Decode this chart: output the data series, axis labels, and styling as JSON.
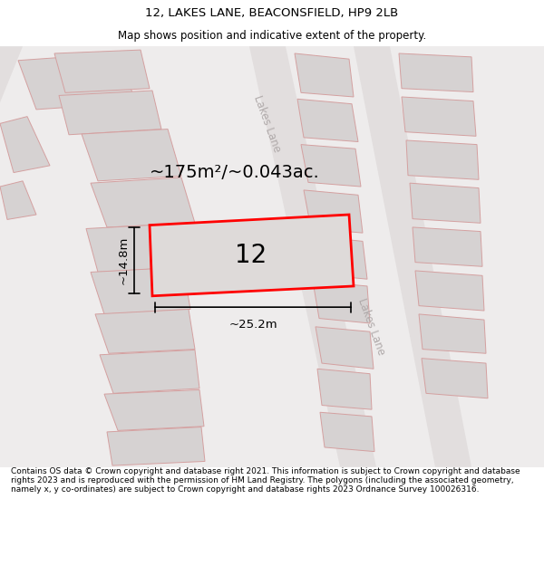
{
  "title": "12, LAKES LANE, BEACONSFIELD, HP9 2LB",
  "subtitle": "Map shows position and indicative extent of the property.",
  "area_text": "~175m²/~0.043ac.",
  "property_number": "12",
  "dim_width": "~25.2m",
  "dim_height": "~14.8m",
  "road_label": "Lakes Lane",
  "footer": "Contains OS data © Crown copyright and database right 2021. This information is subject to Crown copyright and database rights 2023 and is reproduced with the permission of HM Land Registry. The polygons (including the associated geometry, namely x, y co-ordinates) are subject to Crown copyright and database rights 2023 Ordnance Survey 100026316.",
  "title_fontsize": 9.5,
  "subtitle_fontsize": 8.5,
  "footer_fontsize": 6.5,
  "map_bg": "#eeecec",
  "road_color": "#e2dede",
  "plot_fill": "#dedad9",
  "plot_outline": "#ff0000",
  "surround_fill": "#d6d2d2",
  "surround_outline": "#d4a0a0",
  "road_label_color": "#b0aaaa",
  "dim_color": "#000000",
  "area_fontsize": 14,
  "number_fontsize": 20,
  "dim_fontsize": 9.5,
  "road_label_fontsize": 8.5
}
